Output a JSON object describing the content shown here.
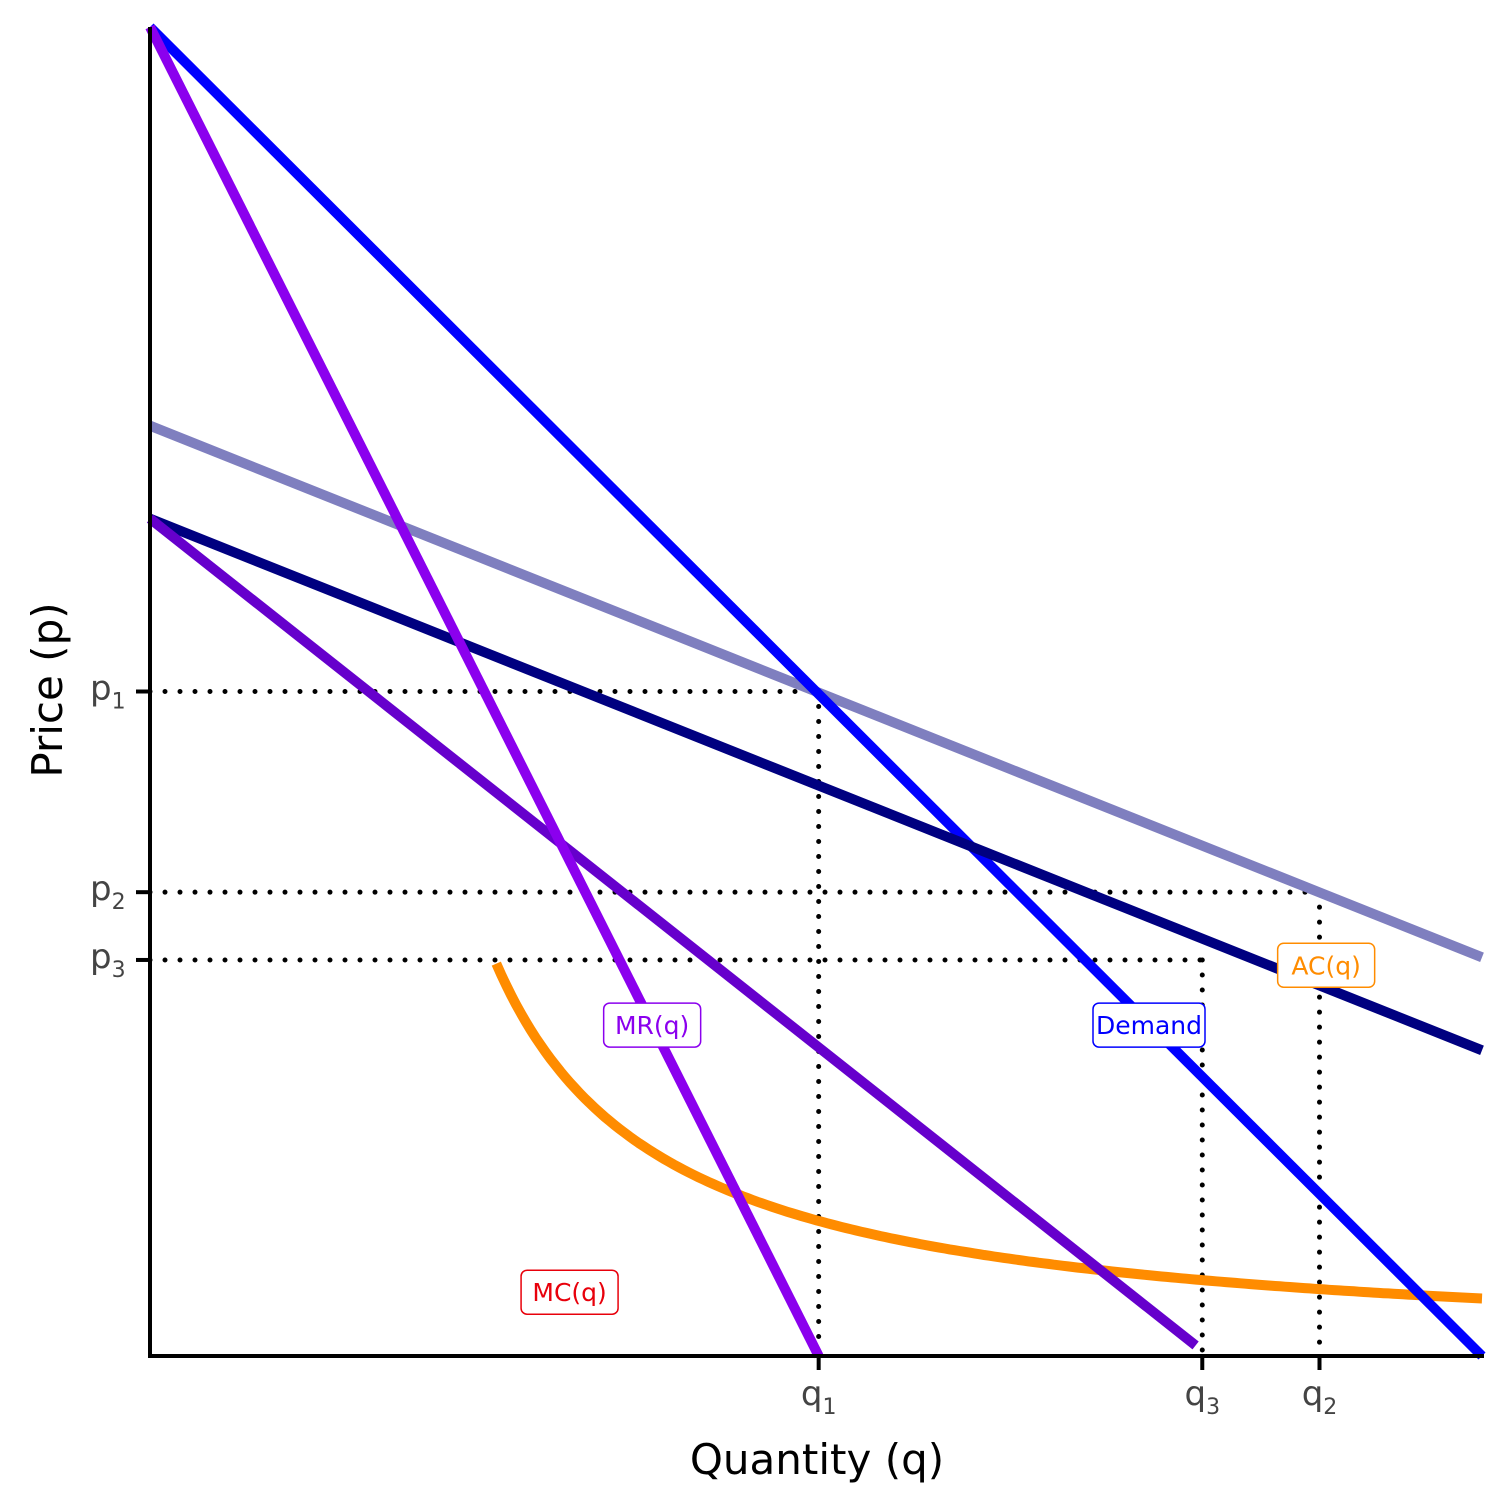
{
  "chart_data": {
    "type": "line",
    "xlabel": "Quantity (q)",
    "ylabel": "Price (p)",
    "xlim": [
      0,
      10
    ],
    "ylim": [
      0,
      10
    ],
    "grid": false,
    "legend": "none",
    "series": [
      {
        "name": "AC(q)",
        "kind": "curve",
        "color": "#FF8C00",
        "equation": "p = 3.75 / (q - 1.33)",
        "x_range": [
          2.6,
          10
        ]
      },
      {
        "name": "",
        "color": "#7F7FBF",
        "x": [
          0,
          10
        ],
        "y": [
          7.0,
          3.0
        ]
      },
      {
        "name": "Demand",
        "color": "#0000FF",
        "x": [
          0,
          10
        ],
        "y": [
          10.0,
          0.0
        ]
      },
      {
        "name": "",
        "color": "#000080",
        "x": [
          0,
          10
        ],
        "y": [
          6.3,
          2.3
        ]
      },
      {
        "name": "",
        "color": "#6600CC",
        "x": [
          0,
          7.85
        ],
        "y": [
          6.3,
          0.08
        ]
      },
      {
        "name": "MR(q)",
        "color": "#8B00EE",
        "x": [
          0,
          5.02
        ],
        "y": [
          10.0,
          0.0
        ]
      },
      {
        "name": "MC(q)",
        "color": "#E8000B",
        "x": [
          0,
          10
        ],
        "y": [
          0.0,
          0.0
        ]
      }
    ],
    "curve_labels": [
      {
        "text": "MR(q)",
        "x": 3.77,
        "y": 2.49,
        "color": "#8B00EE"
      },
      {
        "text": "Demand",
        "x": 7.5,
        "y": 2.49,
        "color": "#0000FF"
      },
      {
        "text": "AC(q)",
        "x": 8.83,
        "y": 2.94,
        "color": "#FF8C00"
      },
      {
        "text": "MC(q)",
        "x": 3.15,
        "y": 0.48,
        "color": "#E8000B"
      }
    ],
    "ticks": {
      "x": [
        {
          "base": "q",
          "sub": "1",
          "value": 5.02
        },
        {
          "base": "q",
          "sub": "3",
          "value": 7.9
        },
        {
          "base": "q",
          "sub": "2",
          "value": 8.78
        }
      ],
      "y": [
        {
          "base": "p",
          "sub": "1",
          "value": 5.0
        },
        {
          "base": "p",
          "sub": "2",
          "value": 3.49
        },
        {
          "base": "p",
          "sub": "3",
          "value": 2.98
        }
      ]
    },
    "guides": [
      {
        "x": 5.02,
        "y": 5.0
      },
      {
        "x": 8.78,
        "y": 3.49
      },
      {
        "x": 7.9,
        "y": 2.98
      }
    ]
  }
}
